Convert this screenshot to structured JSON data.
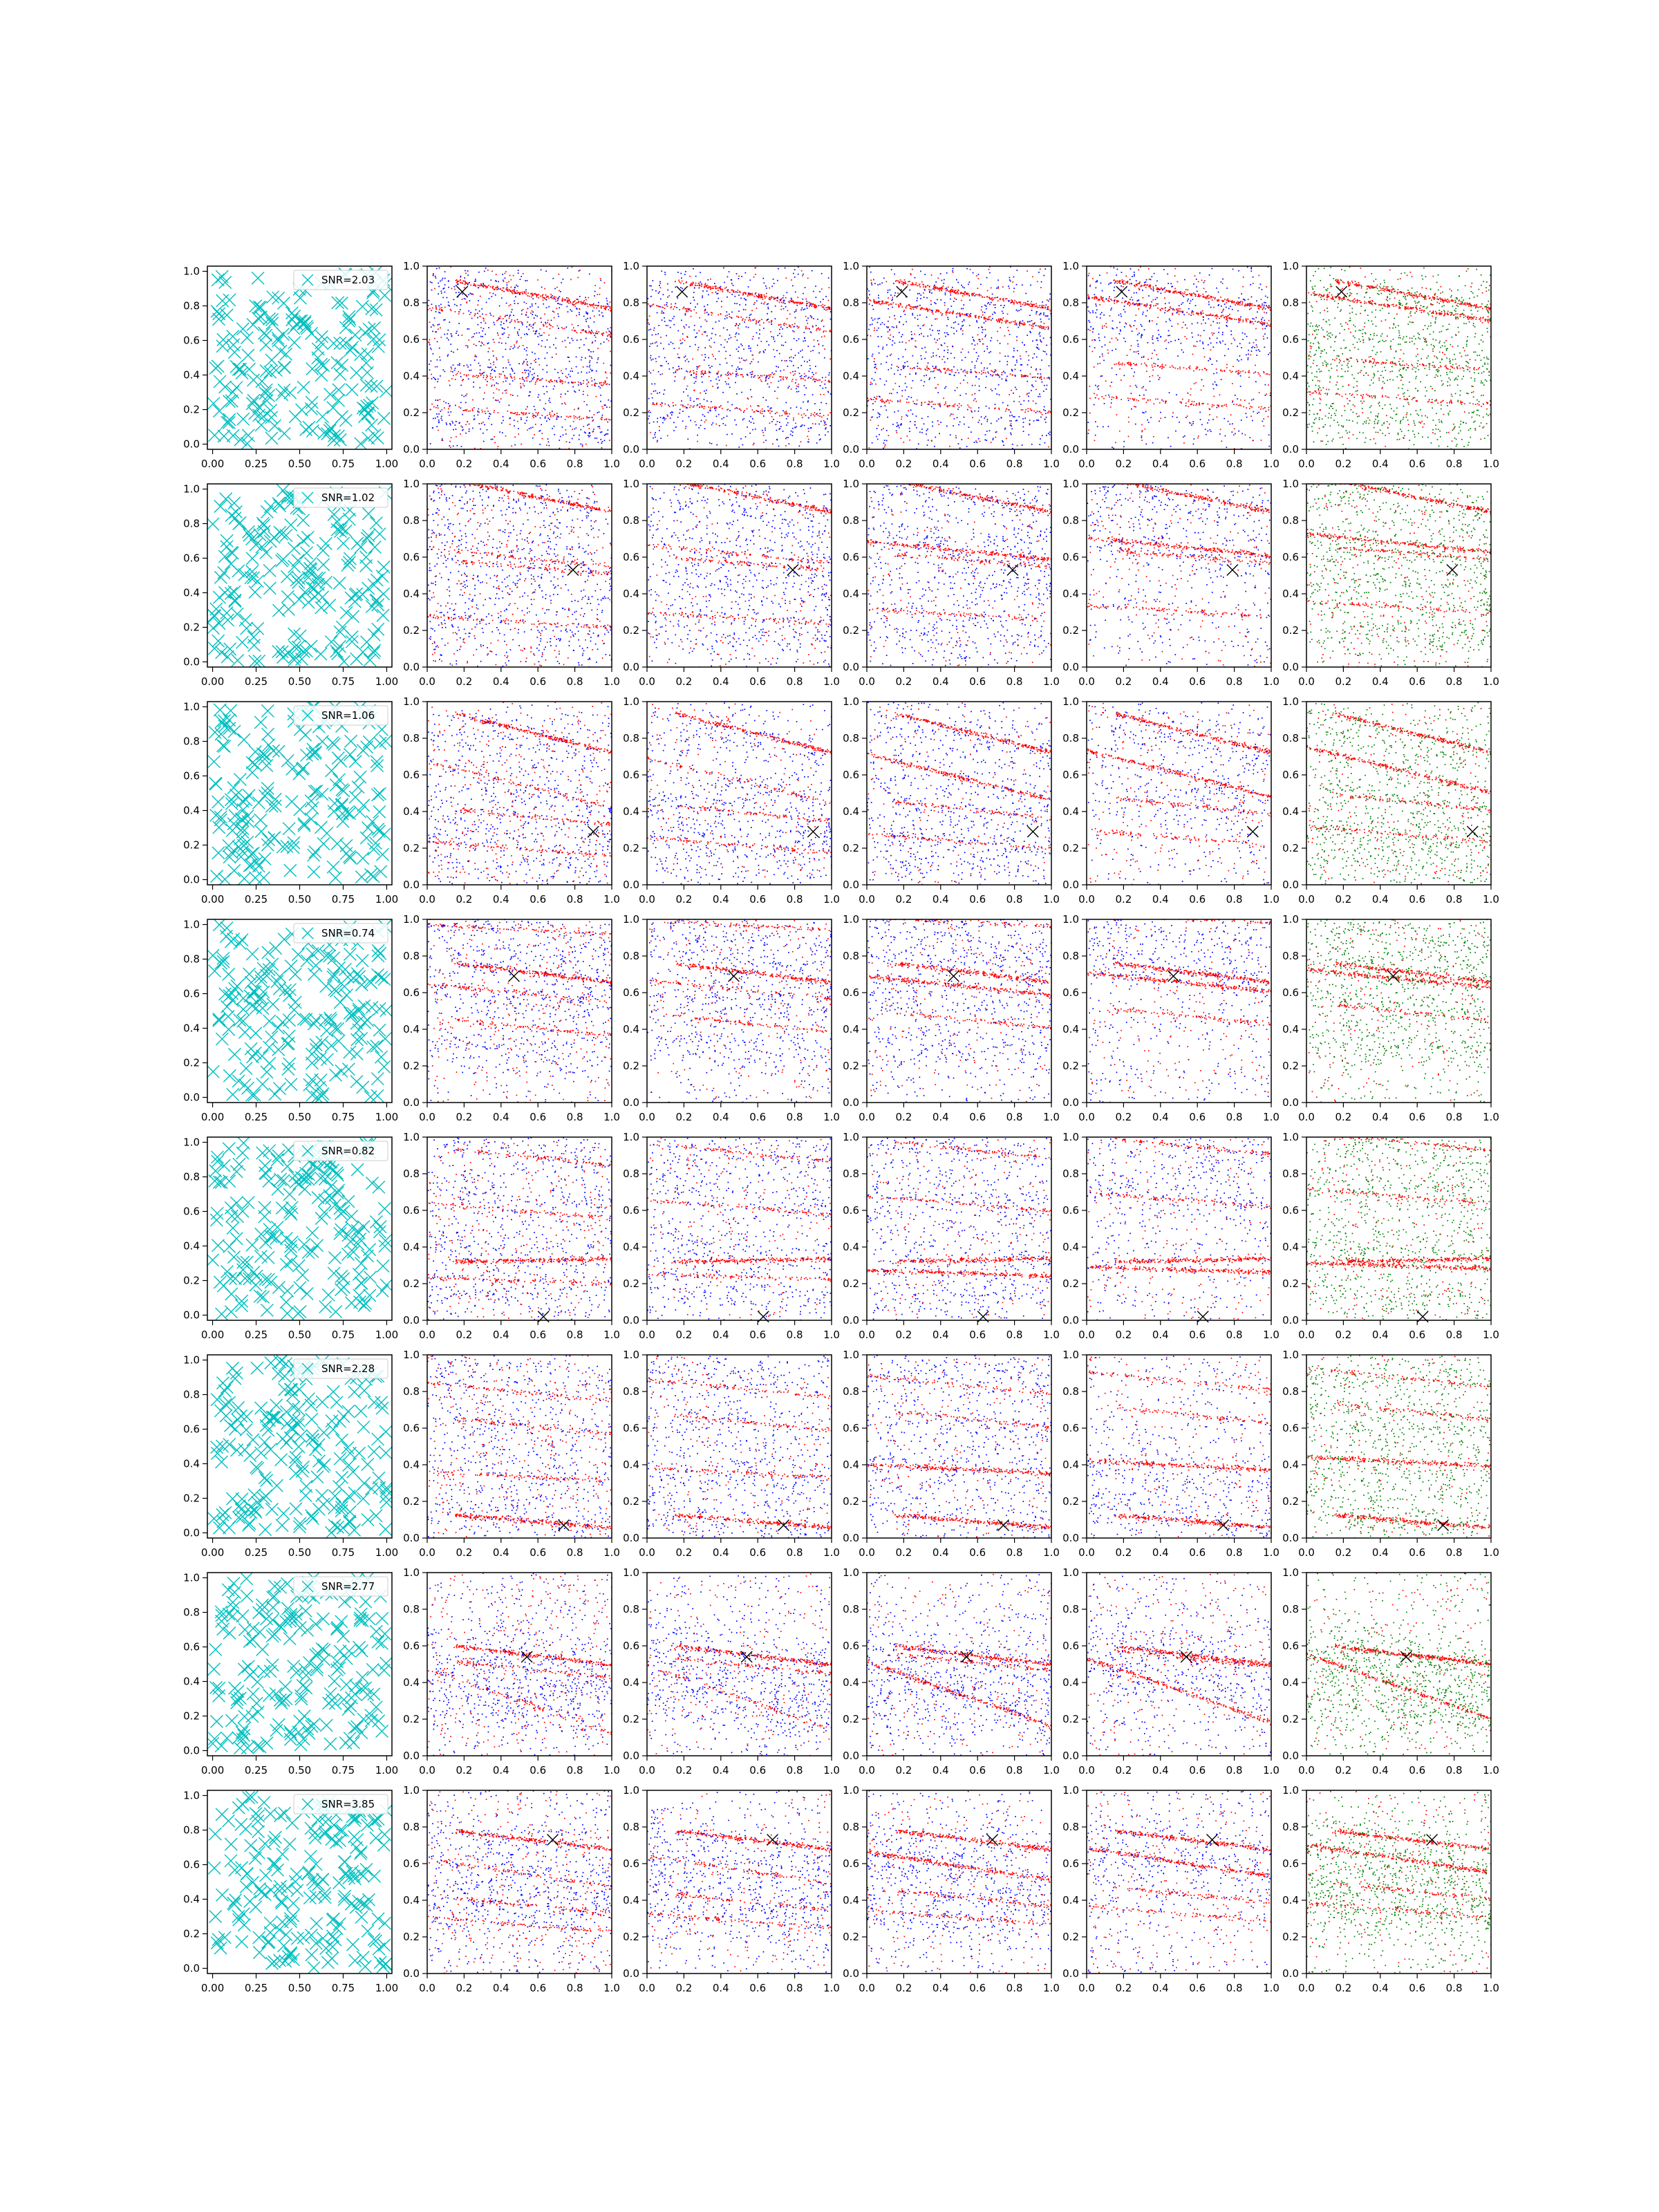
{
  "chart_data": {
    "type": "scatter",
    "layout": {
      "rows": 8,
      "columns": 6
    },
    "axes": {
      "first_column": {
        "xlim": [
          -0.03,
          1.03
        ],
        "ylim": [
          -0.03,
          1.03
        ],
        "xticks": [
          "0.00",
          "0.25",
          "0.50",
          "0.75",
          "1.00"
        ],
        "yticks": [
          "0.0",
          "0.2",
          "0.4",
          "0.6",
          "0.8",
          "1.0"
        ]
      },
      "other_columns": {
        "xlim": [
          0,
          1
        ],
        "ylim": [
          0,
          1
        ],
        "xticks": [
          "0.0",
          "0.2",
          "0.4",
          "0.6",
          "0.8",
          "1.0"
        ],
        "yticks": [
          "0.0",
          "0.2",
          "0.4",
          "0.6",
          "0.8",
          "1.0"
        ]
      }
    },
    "colors": {
      "candidates": "#00bfbf",
      "blue": "#0000ff",
      "red": "#ff0000",
      "green": "#008000",
      "marker": "#000000"
    },
    "rows": [
      {
        "snr": "SNR=2.03",
        "x_marker": [
          0.19,
          0.86
        ],
        "red_lines": [
          {
            "y": 0.86,
            "slope": -0.18
          },
          {
            "y": 0.7,
            "slope": -0.15
          },
          {
            "y": 0.39,
            "slope": -0.07
          },
          {
            "y": 0.2,
            "slope": -0.07
          }
        ],
        "blue_y": [
          0.82,
          0.62,
          0.42,
          0.15
        ],
        "spread": 0.06
      },
      {
        "snr": "SNR=1.02",
        "x_marker": [
          0.79,
          0.53
        ],
        "red_lines": [
          {
            "y": 0.95,
            "slope": -0.2
          },
          {
            "y": 0.6,
            "slope": -0.1
          },
          {
            "y": 0.55,
            "slope": -0.08
          },
          {
            "y": 0.25,
            "slope": -0.06
          }
        ],
        "blue_y": [
          0.9,
          0.65,
          0.45,
          0.2
        ],
        "spread": 0.07
      },
      {
        "snr": "SNR=1.06",
        "x_marker": [
          0.9,
          0.29
        ],
        "red_lines": [
          {
            "y": 0.85,
            "slope": -0.25
          },
          {
            "y": 0.55,
            "slope": -0.25
          },
          {
            "y": 0.38,
            "slope": -0.1
          },
          {
            "y": 0.2,
            "slope": -0.08
          }
        ],
        "blue_y": [
          0.8,
          0.5,
          0.3,
          0.12
        ],
        "spread": 0.08
      },
      {
        "snr": "SNR=0.74",
        "x_marker": [
          0.47,
          0.69
        ],
        "red_lines": [
          {
            "y": 0.72,
            "slope": -0.12
          },
          {
            "y": 0.6,
            "slope": -0.1
          },
          {
            "y": 0.42,
            "slope": -0.1
          },
          {
            "y": 0.95,
            "slope": -0.05
          }
        ],
        "blue_y": [
          0.92,
          0.75,
          0.55,
          0.3
        ],
        "spread": 0.06
      },
      {
        "snr": "SNR=0.82",
        "x_marker": [
          0.63,
          0.02
        ],
        "red_lines": [
          {
            "y": 0.33,
            "slope": 0.02
          },
          {
            "y": 0.22,
            "slope": -0.03
          },
          {
            "y": 0.9,
            "slope": -0.1
          },
          {
            "y": 0.6,
            "slope": -0.08
          }
        ],
        "blue_y": [
          0.95,
          0.7,
          0.4,
          0.15
        ],
        "spread": 0.07
      },
      {
        "snr": "SNR=2.28",
        "x_marker": [
          0.74,
          0.07
        ],
        "red_lines": [
          {
            "y": 0.1,
            "slope": -0.08
          },
          {
            "y": 0.34,
            "slope": -0.05
          },
          {
            "y": 0.62,
            "slope": -0.1
          },
          {
            "y": 0.8,
            "slope": -0.1
          }
        ],
        "blue_y": [
          0.1,
          0.35,
          0.6,
          0.9
        ],
        "spread": 0.08
      },
      {
        "snr": "SNR=2.77",
        "x_marker": [
          0.54,
          0.54
        ],
        "red_lines": [
          {
            "y": 0.56,
            "slope": -0.12
          },
          {
            "y": 0.3,
            "slope": -0.35
          },
          {
            "y": 0.48,
            "slope": -0.1
          }
        ],
        "blue_y": [
          0.55,
          0.4,
          0.25
        ],
        "spread": 0.09
      },
      {
        "snr": "SNR=3.85",
        "x_marker": [
          0.68,
          0.73
        ],
        "red_lines": [
          {
            "y": 0.74,
            "slope": -0.12
          },
          {
            "y": 0.55,
            "slope": -0.15
          },
          {
            "y": 0.38,
            "slope": -0.1
          },
          {
            "y": 0.27,
            "slope": -0.08
          }
        ],
        "blue_y": [
          0.7,
          0.55,
          0.42,
          0.3
        ],
        "spread": 0.07
      }
    ]
  }
}
